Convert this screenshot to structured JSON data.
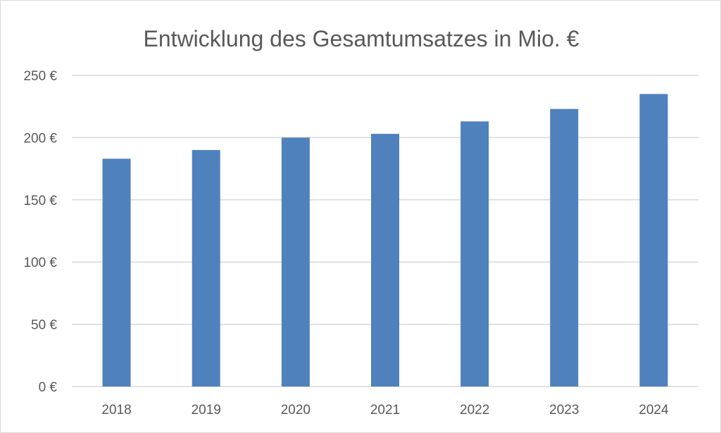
{
  "chart_data": {
    "type": "bar",
    "title": "Entwicklung des Gesamtumsatzes in Mio. €",
    "xlabel": "",
    "ylabel": "",
    "categories": [
      "2018",
      "2019",
      "2020",
      "2021",
      "2022",
      "2023",
      "2024"
    ],
    "values": [
      183,
      190,
      200,
      203,
      213,
      223,
      235
    ],
    "ylim": [
      0,
      250
    ],
    "yticks": [
      0,
      50,
      100,
      150,
      200,
      250
    ],
    "ytick_labels": [
      "0 €",
      "50 €",
      "100 €",
      "150 €",
      "200 €",
      "250 €"
    ],
    "grid": true,
    "legend": "none",
    "colors": {
      "bar": "#4f81bd",
      "grid": "#d9d9d9",
      "text": "#595959",
      "border": "#d9d9d9"
    }
  }
}
